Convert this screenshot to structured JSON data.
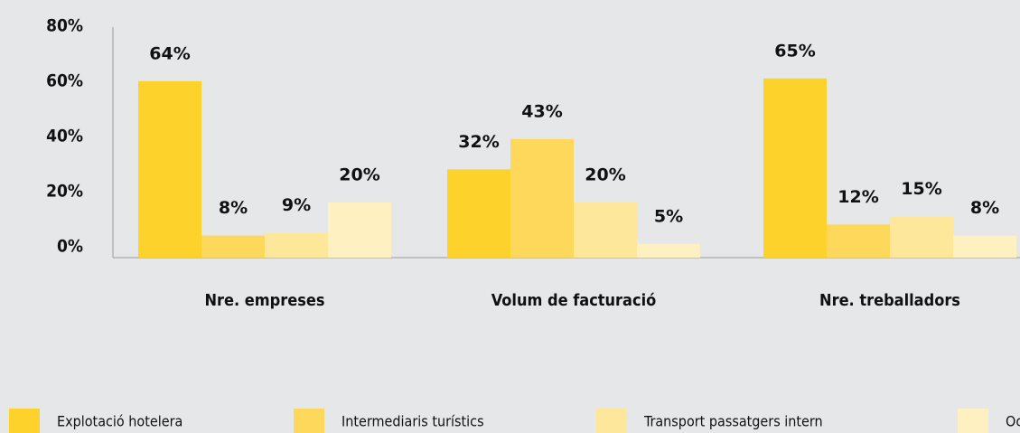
{
  "chart_data": {
    "type": "bar",
    "categories": [
      "Nre. empreses",
      "Volum de facturació",
      "Nre. treballadors"
    ],
    "series": [
      {
        "name": "Explotació hotelera",
        "color": "#fdd22b",
        "values": [
          64,
          32,
          65
        ],
        "value_labels": [
          "64%",
          "32%",
          "65%"
        ]
      },
      {
        "name": "Intermediaris turístics",
        "color": "#fdd85a",
        "values": [
          8,
          43,
          12
        ],
        "value_labels": [
          "8%",
          "43%",
          "12%"
        ]
      },
      {
        "name": "Transport passatgers intern",
        "color": "#fde79a",
        "values": [
          9,
          20,
          15
        ],
        "value_labels": [
          "9%",
          "20%",
          "15%"
        ]
      },
      {
        "name": "Oci",
        "color": "#fef0c0",
        "values": [
          20,
          5,
          8
        ],
        "value_labels": [
          "20%",
          "5%",
          "8%"
        ]
      }
    ],
    "ylim": [
      0,
      80
    ],
    "yticks": [
      {
        "value": 0,
        "label": "0%"
      },
      {
        "value": 20,
        "label": "20%"
      },
      {
        "value": 40,
        "label": "40%"
      },
      {
        "value": 60,
        "label": "60%"
      },
      {
        "value": 80,
        "label": "80%"
      }
    ]
  }
}
